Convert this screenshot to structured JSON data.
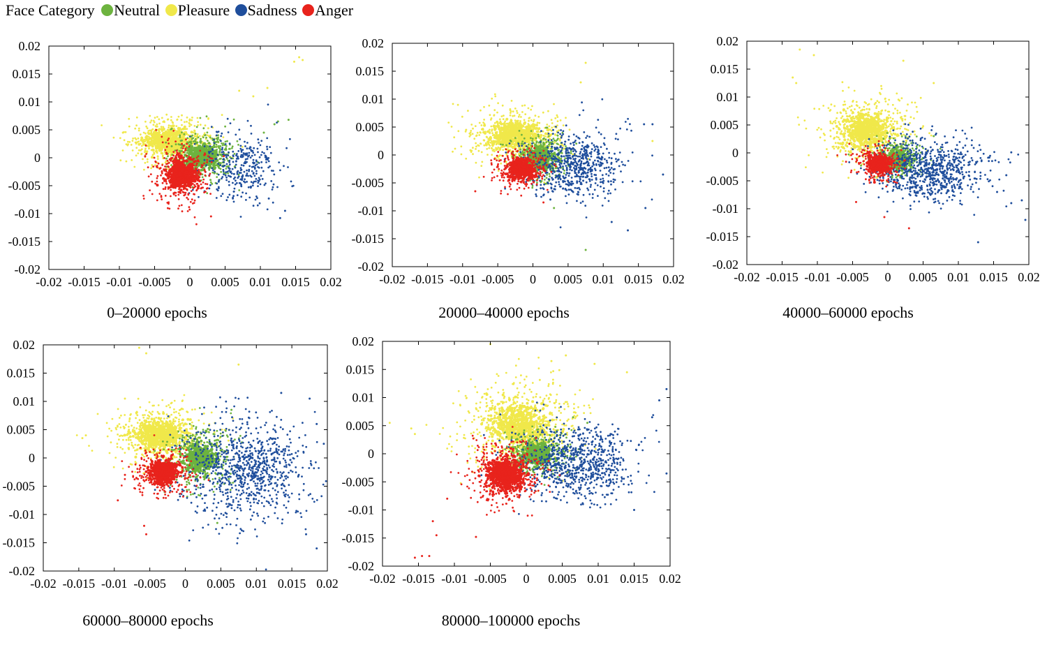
{
  "legend": {
    "title": "Face Category",
    "items": [
      {
        "label": "Neutral",
        "color": "#6db33f"
      },
      {
        "label": "Pleasure",
        "color": "#f0e84a"
      },
      {
        "label": "Sadness",
        "color": "#1f4e9c"
      },
      {
        "label": "Anger",
        "color": "#e8231c"
      }
    ]
  },
  "chart_data": [
    {
      "type": "scatter",
      "caption": "0–20000 epochs",
      "xlim": [
        -0.02,
        0.02
      ],
      "ylim": [
        -0.02,
        0.02
      ],
      "xticks": [
        -0.02,
        -0.015,
        -0.01,
        -0.005,
        0,
        0.005,
        0.01,
        0.015,
        0.02
      ],
      "yticks": [
        -0.02,
        -0.015,
        -0.01,
        -0.005,
        0,
        0.005,
        0.01,
        0.015,
        0.02
      ],
      "tick_labels": [
        "-0.02",
        "-0.015",
        "-0.01",
        "-0.005",
        "0",
        "0.005",
        "0.01",
        "0.015",
        "0.02"
      ],
      "grid": false,
      "series": [
        {
          "name": "Pleasure",
          "color": "#f0e84a",
          "center": [
            -0.003,
            0.003
          ],
          "spread": [
            0.003,
            0.0022
          ],
          "dense": 0.45,
          "n": 900,
          "outliers": [
            [
              0.0155,
              0.018
            ],
            [
              0.016,
              0.0175
            ],
            [
              0.0148,
              0.0172
            ],
            [
              0.009,
              0.011
            ],
            [
              0.007,
              0.012
            ],
            [
              0.011,
              0.0125
            ],
            [
              -0.0095,
              0.0045
            ]
          ]
        },
        {
          "name": "Neutral",
          "color": "#6db33f",
          "center": [
            0.0018,
            0.0003
          ],
          "spread": [
            0.0022,
            0.0022
          ],
          "dense": 0.45,
          "n": 800,
          "outliers": [
            [
              0.014,
              0.0068
            ],
            [
              0.0125,
              0.0065
            ],
            [
              0.012,
              0.006
            ],
            [
              0.0105,
              0.0045
            ]
          ]
        },
        {
          "name": "Sadness",
          "color": "#1f4e9c",
          "center": [
            0.007,
            -0.0015
          ],
          "spread": [
            0.003,
            0.003
          ],
          "dense": 0.0,
          "n": 340,
          "outliers": [
            [
              0.0135,
              -0.0095
            ],
            [
              0.0128,
              -0.0108
            ],
            [
              0.0112,
              -0.0073
            ]
          ]
        },
        {
          "name": "Anger",
          "color": "#e8231c",
          "center": [
            -0.0012,
            -0.003
          ],
          "spread": [
            0.002,
            0.0025
          ],
          "dense": 0.5,
          "n": 900,
          "outliers": [
            [
              0.003,
              -0.0105
            ]
          ]
        }
      ]
    },
    {
      "type": "scatter",
      "caption": "20000–40000 epochs",
      "xlim": [
        -0.02,
        0.02
      ],
      "ylim": [
        -0.02,
        0.02
      ],
      "xticks": [
        -0.02,
        -0.015,
        -0.01,
        -0.005,
        0,
        0.005,
        0.01,
        0.015,
        0.02
      ],
      "yticks": [
        -0.02,
        -0.015,
        -0.01,
        -0.005,
        0,
        0.005,
        0.01,
        0.015,
        0.02
      ],
      "tick_labels": [
        "-0.02",
        "-0.015",
        "-0.01",
        "-0.005",
        "0",
        "0.005",
        "0.01",
        "0.015",
        "0.02"
      ],
      "grid": false,
      "series": [
        {
          "name": "Pleasure",
          "color": "#f0e84a",
          "center": [
            -0.0025,
            0.0035
          ],
          "spread": [
            0.0035,
            0.0025
          ],
          "dense": 0.45,
          "n": 1000,
          "outliers": [
            [
              0.0075,
              0.0165
            ],
            [
              0.0068,
              0.013
            ],
            [
              -0.0095,
              0.0045
            ],
            [
              0.017,
              0.0025
            ]
          ]
        },
        {
          "name": "Neutral",
          "color": "#6db33f",
          "center": [
            0.001,
            -0.0005
          ],
          "spread": [
            0.002,
            0.002
          ],
          "dense": 0.45,
          "n": 700,
          "outliers": [
            [
              0.0075,
              -0.017
            ],
            [
              0.003,
              -0.0095
            ]
          ]
        },
        {
          "name": "Sadness",
          "color": "#1f4e9c",
          "center": [
            0.0055,
            -0.002
          ],
          "spread": [
            0.0035,
            0.003
          ],
          "dense": 0.0,
          "n": 650,
          "outliers": [
            [
              0.016,
              -0.0095
            ],
            [
              0.0185,
              -0.0035
            ],
            [
              0.0135,
              -0.0135
            ],
            [
              0.0112,
              -0.012
            ],
            [
              0.0158,
              0.0055
            ],
            [
              0.017,
              0.0055
            ]
          ]
        },
        {
          "name": "Anger",
          "color": "#e8231c",
          "center": [
            -0.0015,
            -0.0025
          ],
          "spread": [
            0.0018,
            0.0018
          ],
          "dense": 0.55,
          "n": 700,
          "outliers": [
            [
              -0.0082,
              -0.0065
            ],
            [
              0.0015,
              -0.0085
            ]
          ]
        }
      ]
    },
    {
      "type": "scatter",
      "caption": "40000–60000 epochs",
      "xlim": [
        -0.02,
        0.02
      ],
      "ylim": [
        -0.02,
        0.02
      ],
      "xticks": [
        -0.02,
        -0.015,
        -0.01,
        -0.005,
        0,
        0.005,
        0.01,
        0.015,
        0.02
      ],
      "yticks": [
        -0.02,
        -0.015,
        -0.01,
        -0.005,
        0,
        0.005,
        0.01,
        0.015,
        0.02
      ],
      "tick_labels": [
        "-0.02",
        "-0.015",
        "-0.01",
        "-0.005",
        "0",
        "0.005",
        "0.01",
        "0.015",
        "0.02"
      ],
      "grid": false,
      "series": [
        {
          "name": "Pleasure",
          "color": "#f0e84a",
          "center": [
            -0.003,
            0.004
          ],
          "spread": [
            0.0032,
            0.003
          ],
          "dense": 0.45,
          "n": 1000,
          "outliers": [
            [
              -0.0125,
              0.0185
            ],
            [
              -0.0135,
              0.0135
            ],
            [
              -0.013,
              0.0125
            ],
            [
              -0.0105,
              0.0175
            ],
            [
              0.0022,
              0.0165
            ],
            [
              0.0065,
              0.0125
            ]
          ]
        },
        {
          "name": "Neutral",
          "color": "#6db33f",
          "center": [
            0.0015,
            -0.001
          ],
          "spread": [
            0.0017,
            0.0017
          ],
          "dense": 0.45,
          "n": 600,
          "outliers": [
            [
              0.0065,
              0.003
            ],
            [
              0.0025,
              0.003
            ]
          ]
        },
        {
          "name": "Sadness",
          "color": "#1f4e9c",
          "center": [
            0.006,
            -0.003
          ],
          "spread": [
            0.004,
            0.0028
          ],
          "dense": 0.0,
          "n": 800,
          "outliers": [
            [
              0.0195,
              -0.012
            ],
            [
              0.019,
              -0.0085
            ],
            [
              0.0175,
              -0.009
            ],
            [
              0.0128,
              -0.016
            ],
            [
              0.0168,
              -0.004
            ],
            [
              0.0175,
              0.0001
            ],
            [
              0.0155,
              -0.007
            ]
          ]
        },
        {
          "name": "Anger",
          "color": "#e8231c",
          "center": [
            -0.0015,
            -0.002
          ],
          "spread": [
            0.0016,
            0.0016
          ],
          "dense": 0.55,
          "n": 600,
          "outliers": [
            [
              -0.0045,
              -0.0088
            ],
            [
              -0.0005,
              -0.0115
            ],
            [
              0.003,
              -0.0135
            ]
          ]
        }
      ]
    },
    {
      "type": "scatter",
      "caption": "60000–80000 epochs",
      "xlim": [
        -0.02,
        0.02
      ],
      "ylim": [
        -0.02,
        0.02
      ],
      "xticks": [
        -0.02,
        -0.015,
        -0.01,
        -0.005,
        0,
        0.005,
        0.01,
        0.015,
        0.02
      ],
      "yticks": [
        -0.02,
        -0.015,
        -0.01,
        -0.005,
        0,
        0.005,
        0.01,
        0.015,
        0.02
      ],
      "tick_labels": [
        "-0.02",
        "-0.015",
        "-0.01",
        "-0.005",
        "0",
        "0.005",
        "0.01",
        "0.015",
        "0.02"
      ],
      "grid": false,
      "series": [
        {
          "name": "Pleasure",
          "color": "#f0e84a",
          "center": [
            -0.0035,
            0.004
          ],
          "spread": [
            0.0035,
            0.0028
          ],
          "dense": 0.45,
          "n": 1000,
          "outliers": [
            [
              -0.0065,
              0.0195
            ],
            [
              -0.0055,
              0.0185
            ],
            [
              -0.014,
              0.004
            ],
            [
              -0.0145,
              0.0035
            ],
            [
              -0.0085,
              0.0105
            ],
            [
              0.0075,
              0.0165
            ]
          ]
        },
        {
          "name": "Neutral",
          "color": "#6db33f",
          "center": [
            0.002,
            0.0
          ],
          "spread": [
            0.0022,
            0.0025
          ],
          "dense": 0.45,
          "n": 800,
          "outliers": [
            [
              0.0065,
              0.0085
            ],
            [
              0.0045,
              -0.0115
            ]
          ]
        },
        {
          "name": "Sadness",
          "color": "#1f4e9c",
          "center": [
            0.0085,
            -0.002
          ],
          "spread": [
            0.0045,
            0.0045
          ],
          "dense": 0.0,
          "n": 900,
          "outliers": [
            [
              0.0185,
              -0.016
            ],
            [
              0.017,
              -0.0135
            ],
            [
              0.0185,
              0.006
            ],
            [
              0.0195,
              0.0025
            ],
            [
              0.0175,
              0.0105
            ],
            [
              0.0135,
              0.0115
            ]
          ]
        },
        {
          "name": "Anger",
          "color": "#e8231c",
          "center": [
            -0.003,
            -0.0025
          ],
          "spread": [
            0.002,
            0.002
          ],
          "dense": 0.55,
          "n": 800,
          "outliers": [
            [
              -0.0095,
              -0.0075
            ],
            [
              -0.0055,
              -0.0135
            ],
            [
              -0.0058,
              -0.012
            ],
            [
              -0.0085,
              -0.003
            ]
          ]
        }
      ]
    },
    {
      "type": "scatter",
      "caption": "80000–100000 epochs",
      "xlim": [
        -0.02,
        0.02
      ],
      "ylim": [
        -0.02,
        0.02
      ],
      "xticks": [
        -0.02,
        -0.015,
        -0.01,
        -0.005,
        0,
        0.005,
        0.01,
        0.015,
        0.02
      ],
      "yticks": [
        -0.02,
        -0.015,
        -0.01,
        -0.005,
        0,
        0.005,
        0.01,
        0.015,
        0.02
      ],
      "tick_labels": [
        "-0.02",
        "-0.015",
        "-0.01",
        "-0.005",
        "0",
        "0.005",
        "0.01",
        "0.015",
        "0.02"
      ],
      "grid": false,
      "series": [
        {
          "name": "Pleasure",
          "color": "#f0e84a",
          "center": [
            -0.001,
            0.005
          ],
          "spread": [
            0.0042,
            0.004
          ],
          "dense": 0.4,
          "n": 1100,
          "outliers": [
            [
              -0.019,
              0.0055
            ],
            [
              -0.016,
              0.0045
            ],
            [
              -0.0155,
              0.0035
            ],
            [
              0.0055,
              0.0175
            ],
            [
              0.0035,
              0.0165
            ],
            [
              0.0095,
              0.016
            ],
            [
              0.014,
              0.0145
            ],
            [
              -0.005,
              0.0195
            ]
          ]
        },
        {
          "name": "Neutral",
          "color": "#6db33f",
          "center": [
            0.0015,
            0.0
          ],
          "spread": [
            0.0022,
            0.002
          ],
          "dense": 0.45,
          "n": 700,
          "outliers": [
            [
              0.0085,
              0.0055
            ],
            [
              0.0065,
              0.0065
            ]
          ]
        },
        {
          "name": "Sadness",
          "color": "#1f4e9c",
          "center": [
            0.007,
            -0.0015
          ],
          "spread": [
            0.004,
            0.0035
          ],
          "dense": 0.0,
          "n": 800,
          "outliers": [
            [
              0.0195,
              0.0115
            ],
            [
              0.0185,
              0.0095
            ],
            [
              0.0175,
              0.0065
            ],
            [
              0.015,
              -0.01
            ],
            [
              0.0195,
              -0.0035
            ]
          ]
        },
        {
          "name": "Anger",
          "color": "#e8231c",
          "center": [
            -0.003,
            -0.0035
          ],
          "spread": [
            0.0025,
            0.0028
          ],
          "dense": 0.55,
          "n": 1000,
          "outliers": [
            [
              -0.0155,
              -0.0185
            ],
            [
              -0.0145,
              -0.0182
            ],
            [
              -0.0135,
              -0.0182
            ],
            [
              -0.0125,
              -0.0145
            ],
            [
              -0.013,
              -0.012
            ],
            [
              -0.007,
              -0.0148
            ],
            [
              -0.011,
              -0.008
            ]
          ]
        }
      ]
    }
  ]
}
